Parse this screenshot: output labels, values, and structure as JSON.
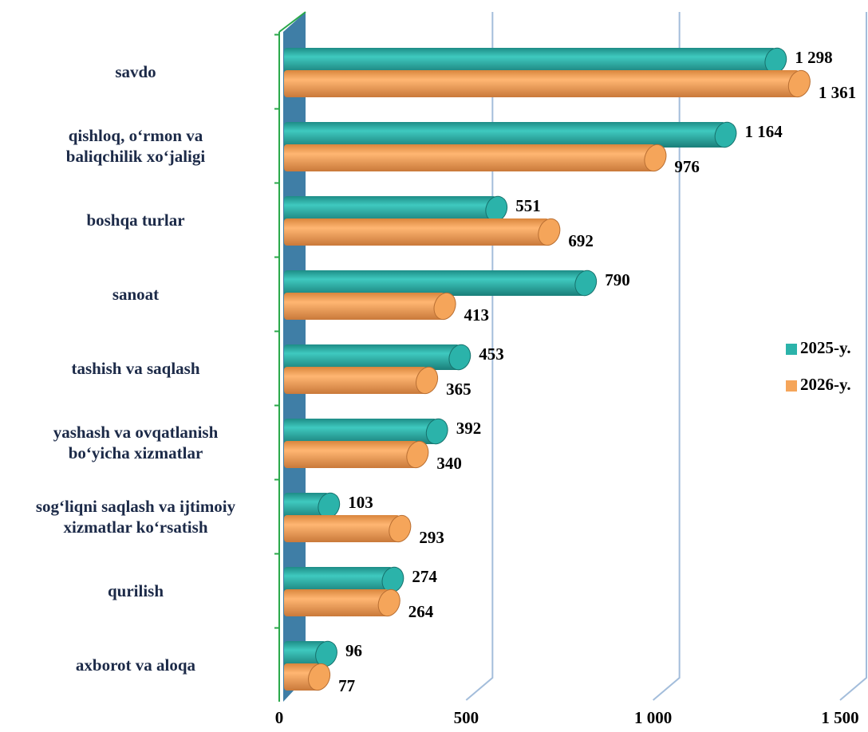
{
  "chart_data": {
    "type": "bar",
    "orientation": "horizontal",
    "categories": [
      "savdo",
      "qishloq, o‘rmon va\nbaliqchilik xo‘jaligi",
      "boshqa turlar",
      "sanoat",
      "tashish va saqlash",
      "yashash va ovqatlanish\nbo‘yicha xizmatlar",
      "sog‘liqni saqlash va ijtimoiy\nxizmatlar ko‘rsatish",
      "qurilish",
      "axborot va aloqa"
    ],
    "series": [
      {
        "name": "2025-y.",
        "color": "#2bb3aa",
        "values": [
          1298,
          1164,
          551,
          790,
          453,
          392,
          103,
          274,
          96
        ],
        "value_labels": [
          "1 298",
          "1 164",
          "551",
          "790",
          "453",
          "392",
          "103",
          "274",
          "96"
        ]
      },
      {
        "name": "2026-y.",
        "color": "#f5a55a",
        "values": [
          1361,
          976,
          692,
          413,
          365,
          340,
          293,
          264,
          77
        ],
        "value_labels": [
          "1 361",
          "976",
          "692",
          "413",
          "365",
          "340",
          "293",
          "264",
          "77"
        ]
      }
    ],
    "xlim": [
      0,
      1500
    ],
    "xticks": [
      0,
      500,
      {
        "value": 1000,
        "label": "1 000"
      },
      {
        "value": 1500,
        "label": "1 500"
      }
    ],
    "grid": true,
    "legend": "right"
  }
}
